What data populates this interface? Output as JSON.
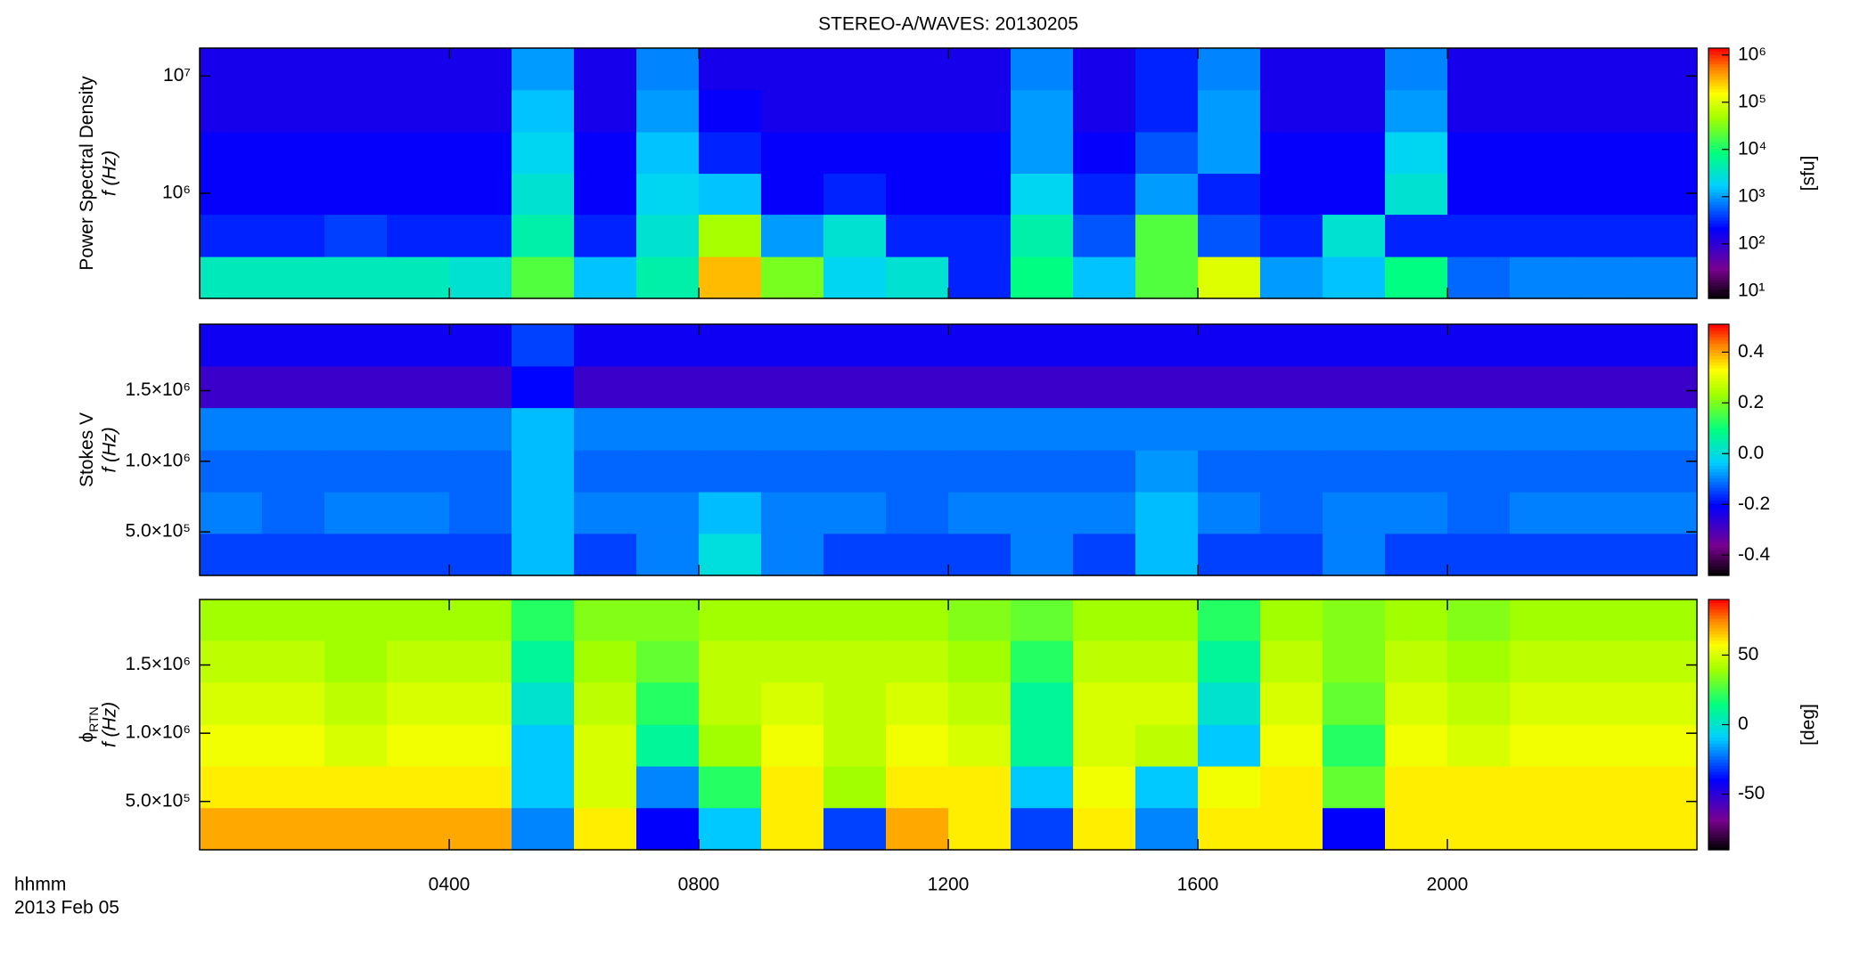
{
  "chart_data": [
    {
      "type": "heatmap",
      "title": "STEREO-A/WAVES: 20130205",
      "ylabel": "Power Spectral Density",
      "ylabel2": "f (Hz)",
      "colorbar_label": "[sfu]",
      "colormap": "rainbow",
      "ylog": true,
      "clog": true,
      "xlim": [
        0,
        24
      ],
      "ylim": [
        127000,
        17300000
      ],
      "clim": [
        7,
        1400000
      ],
      "yticks": [
        {
          "value": 1000000,
          "label": "10⁶"
        },
        {
          "value": 10000000,
          "label": "10⁷"
        }
      ],
      "cticks": [
        {
          "value": 10,
          "label": "10¹"
        },
        {
          "value": 100,
          "label": "10²"
        },
        {
          "value": 1000,
          "label": "10³"
        },
        {
          "value": 10000,
          "label": "10⁴"
        },
        {
          "value": 100000,
          "label": "10⁵"
        },
        {
          "value": 1000000,
          "label": "10⁶"
        }
      ],
      "x": [
        0.5,
        1.5,
        2.5,
        3.5,
        4.5,
        5.5,
        6.5,
        7.5,
        8.5,
        9.5,
        10.5,
        11.5,
        12.5,
        13.5,
        14.5,
        15.5,
        16.5,
        17.5,
        18.5,
        19.5,
        20.5,
        21.5,
        22.5,
        23.5
      ],
      "y": [
        190000,
        440000,
        1000000,
        2200000,
        5100000,
        11500000
      ],
      "z": [
        [
          4000,
          4000,
          4000,
          4000,
          3000,
          20000,
          1500,
          5000,
          300000,
          30000,
          2000,
          3000,
          300,
          8000,
          1500,
          20000,
          100000,
          1000,
          1500,
          8000,
          600,
          800,
          800,
          800
        ],
        [
          300,
          300,
          400,
          300,
          300,
          5000,
          300,
          3000,
          50000,
          1000,
          3000,
          300,
          300,
          5000,
          500,
          20000,
          500,
          300,
          3000,
          300,
          300,
          300,
          300,
          300
        ],
        [
          200,
          200,
          200,
          200,
          200,
          3000,
          200,
          2000,
          1500,
          200,
          300,
          200,
          200,
          2000,
          300,
          1000,
          300,
          200,
          200,
          3000,
          200,
          200,
          200,
          200
        ],
        [
          200,
          200,
          200,
          200,
          200,
          2000,
          200,
          1500,
          300,
          200,
          200,
          200,
          200,
          1000,
          200,
          500,
          1000,
          200,
          200,
          2000,
          200,
          200,
          200,
          200
        ],
        [
          150,
          150,
          150,
          150,
          150,
          1500,
          150,
          1000,
          200,
          150,
          150,
          150,
          150,
          1000,
          150,
          300,
          1000,
          150,
          150,
          1000,
          150,
          150,
          150,
          150
        ],
        [
          150,
          150,
          150,
          150,
          150,
          1000,
          150,
          800,
          150,
          150,
          150,
          150,
          150,
          800,
          150,
          300,
          800,
          150,
          150,
          800,
          150,
          150,
          150,
          150
        ]
      ]
    },
    {
      "type": "heatmap",
      "ylabel": "Stokes V",
      "ylabel2": "f (Hz)",
      "colormap": "rainbow",
      "xlim": [
        0,
        24
      ],
      "ylim": [
        192000,
        1970000
      ],
      "clim": [
        -0.48,
        0.51
      ],
      "yticks": [
        {
          "value": 500000,
          "label": "5.0×10⁵"
        },
        {
          "value": 1000000,
          "label": "1.0×10⁶"
        },
        {
          "value": 1500000,
          "label": "1.5×10⁶"
        }
      ],
      "cticks": [
        -0.4,
        -0.2,
        {
          "value": 0,
          "label": "0.0"
        },
        0.2,
        0.4
      ],
      "x": [
        0.5,
        1.5,
        2.5,
        3.5,
        4.5,
        5.5,
        6.5,
        7.5,
        8.5,
        9.5,
        10.5,
        11.5,
        12.5,
        13.5,
        14.5,
        15.5,
        16.5,
        17.5,
        18.5,
        19.5,
        20.5,
        21.5,
        22.5,
        23.5
      ],
      "y": [
        340000,
        640000,
        930000,
        1230000,
        1530000,
        1820000
      ],
      "z": [
        [
          -0.15,
          -0.15,
          -0.15,
          -0.15,
          -0.15,
          -0.05,
          -0.15,
          -0.1,
          0.0,
          -0.1,
          -0.15,
          -0.15,
          -0.15,
          -0.1,
          -0.15,
          -0.05,
          -0.15,
          -0.15,
          -0.1,
          -0.15,
          -0.15,
          -0.15,
          -0.15,
          -0.15
        ],
        [
          -0.1,
          -0.12,
          -0.1,
          -0.1,
          -0.12,
          -0.05,
          -0.1,
          -0.1,
          -0.05,
          -0.1,
          -0.1,
          -0.12,
          -0.1,
          -0.1,
          -0.1,
          -0.05,
          -0.1,
          -0.12,
          -0.1,
          -0.1,
          -0.12,
          -0.1,
          -0.1,
          -0.1
        ],
        [
          -0.12,
          -0.12,
          -0.12,
          -0.12,
          -0.12,
          -0.05,
          -0.12,
          -0.12,
          -0.12,
          -0.12,
          -0.12,
          -0.12,
          -0.12,
          -0.12,
          -0.12,
          -0.08,
          -0.12,
          -0.12,
          -0.12,
          -0.12,
          -0.12,
          -0.12,
          -0.12,
          -0.12
        ],
        [
          -0.1,
          -0.1,
          -0.1,
          -0.1,
          -0.1,
          -0.05,
          -0.1,
          -0.1,
          -0.1,
          -0.1,
          -0.1,
          -0.1,
          -0.1,
          -0.1,
          -0.1,
          -0.1,
          -0.1,
          -0.1,
          -0.1,
          -0.1,
          -0.1,
          -0.1,
          -0.1,
          -0.1
        ],
        [
          -0.28,
          -0.28,
          -0.28,
          -0.28,
          -0.28,
          -0.2,
          -0.28,
          -0.28,
          -0.28,
          -0.28,
          -0.28,
          -0.28,
          -0.28,
          -0.28,
          -0.28,
          -0.28,
          -0.28,
          -0.28,
          -0.28,
          -0.28,
          -0.28,
          -0.28,
          -0.28,
          -0.28
        ],
        [
          -0.22,
          -0.22,
          -0.22,
          -0.22,
          -0.22,
          -0.15,
          -0.22,
          -0.22,
          -0.22,
          -0.22,
          -0.22,
          -0.22,
          -0.22,
          -0.22,
          -0.22,
          -0.22,
          -0.22,
          -0.22,
          -0.22,
          -0.22,
          -0.22,
          -0.22,
          -0.22,
          -0.22
        ]
      ]
    },
    {
      "type": "heatmap",
      "ylabel": "ϕ",
      "ylabel_sub": "RTN",
      "ylabel2": "f (Hz)",
      "colorbar_label": "[deg]",
      "colormap": "rainbow",
      "xlim": [
        0,
        24
      ],
      "ylim": [
        146000,
        1980000
      ],
      "clim": [
        -90,
        90
      ],
      "xticks": [
        {
          "value": 4,
          "label": "0400"
        },
        {
          "value": 8,
          "label": "0800"
        },
        {
          "value": 12,
          "label": "1200"
        },
        {
          "value": 16,
          "label": "1600"
        },
        {
          "value": 20,
          "label": "2000"
        }
      ],
      "xlabel": "hhmm",
      "date_label": "2013 Feb 05",
      "yticks": [
        {
          "value": 500000,
          "label": "5.0×10⁵"
        },
        {
          "value": 1000000,
          "label": "1.0×10⁶"
        },
        {
          "value": 1500000,
          "label": "1.5×10⁶"
        }
      ],
      "cticks": [
        -50,
        0,
        50
      ],
      "x": [
        0.5,
        1.5,
        2.5,
        3.5,
        4.5,
        5.5,
        6.5,
        7.5,
        8.5,
        9.5,
        10.5,
        11.5,
        12.5,
        13.5,
        14.5,
        15.5,
        16.5,
        17.5,
        18.5,
        19.5,
        20.5,
        21.5,
        22.5,
        23.5
      ],
      "y": [
        300000,
        610000,
        910000,
        1220000,
        1530000,
        1830000
      ],
      "z": [
        [
          70,
          70,
          70,
          70,
          70,
          -20,
          60,
          -40,
          -10,
          60,
          -30,
          70,
          60,
          -30,
          60,
          -20,
          60,
          60,
          -40,
          60,
          60,
          60,
          60,
          60
        ],
        [
          60,
          60,
          60,
          60,
          60,
          -10,
          50,
          -20,
          20,
          60,
          40,
          60,
          60,
          -10,
          55,
          -10,
          55,
          60,
          30,
          60,
          60,
          60,
          60,
          60
        ],
        [
          55,
          55,
          50,
          55,
          55,
          -10,
          50,
          10,
          40,
          55,
          45,
          55,
          50,
          10,
          50,
          45,
          -10,
          55,
          20,
          55,
          50,
          55,
          55,
          55
        ],
        [
          50,
          50,
          45,
          50,
          50,
          0,
          45,
          20,
          45,
          50,
          45,
          50,
          45,
          10,
          50,
          50,
          0,
          50,
          30,
          50,
          45,
          50,
          50,
          50
        ],
        [
          45,
          45,
          40,
          45,
          45,
          10,
          40,
          30,
          45,
          45,
          45,
          45,
          40,
          20,
          45,
          45,
          10,
          45,
          35,
          45,
          40,
          45,
          45,
          45
        ],
        [
          40,
          40,
          40,
          40,
          40,
          20,
          35,
          35,
          40,
          40,
          40,
          40,
          35,
          30,
          40,
          40,
          20,
          40,
          35,
          40,
          35,
          40,
          40,
          40
        ]
      ]
    }
  ]
}
